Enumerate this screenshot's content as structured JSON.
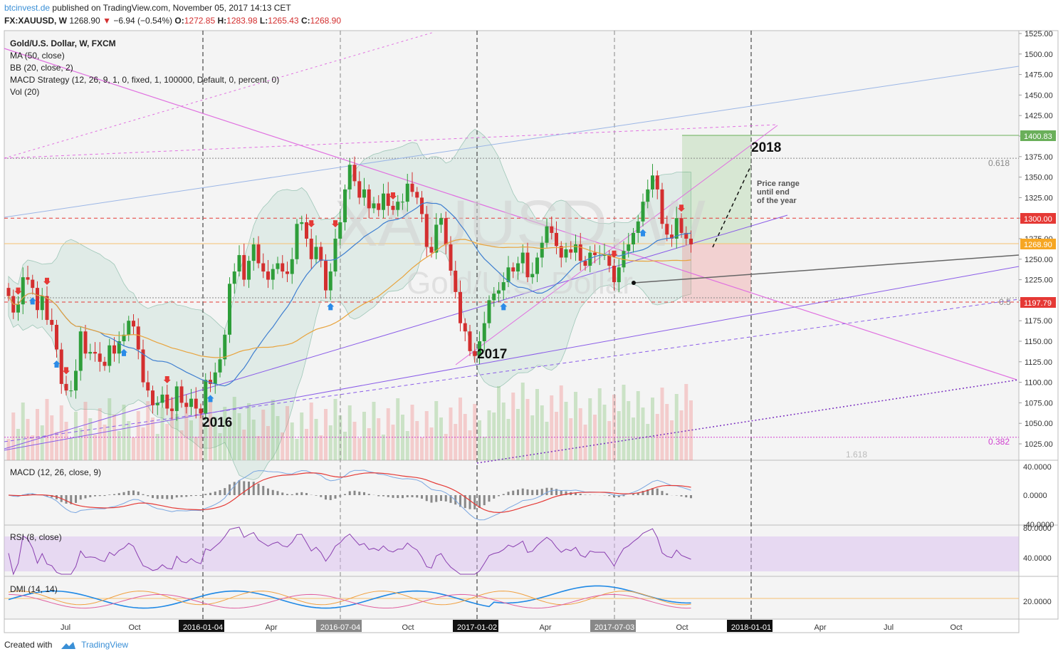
{
  "header": {
    "site": "btcinvest.de",
    "published": "published on TradingView.com, November 05, 2017 14:13 CET",
    "symbol": "FX:XAUUSD, W",
    "last": "1268.90",
    "change": "−6.94 (−0.54%)",
    "open_label": "O:",
    "open": "1272.85",
    "high_label": "H:",
    "high": "1283.98",
    "low_label": "L:",
    "low": "1265.43",
    "close_label": "C:",
    "close": "1268.90"
  },
  "legend": {
    "title": "Gold/U.S. Dollar, W, FXCM",
    "ma": "MA (50, close)",
    "bb": "BB (20, close, 2)",
    "strategy": "MACD Strategy (12, 26, 9, 1, 0, fixed, 1, 100000, Default, 0, percent, 0)",
    "vol": "Vol (20)"
  },
  "watermark": {
    "big": "XAUUSD, W",
    "small": "Gold/U.S. Dollar"
  },
  "annotations": {
    "y2016": "2016",
    "y2017": "2017",
    "y2018": "2018",
    "range_note": [
      "Price range",
      "until end",
      "of the year"
    ],
    "fib_0618": "0.618",
    "fib_05": "0.5",
    "fib_0382": "0.382",
    "fib_1618": "1.618"
  },
  "panes": {
    "macd": {
      "title": "MACD (12, 26, close, 9)",
      "ticks": [
        "40.0000",
        "0.0000",
        "-40.0000"
      ]
    },
    "rsi": {
      "title": "RSI (8, close)",
      "ticks": [
        "80.0000",
        "40.0000"
      ]
    },
    "dmi": {
      "title": "DMI (14, 14)",
      "ticks": [
        "20.0000"
      ]
    }
  },
  "price_labels": {
    "top": "1400.83",
    "mid": "1300.00",
    "last": "1268.90",
    "low": "1197.79"
  },
  "x_axis": [
    "Jul",
    "Oct",
    "2016-01-04",
    "Apr",
    "2016-07-04",
    "Oct",
    "2017-01-02",
    "Apr",
    "2017-07-03",
    "Oct",
    "2018-01-01",
    "Apr",
    "Jul",
    "Oct"
  ],
  "footer": {
    "created": "Created with",
    "brand": "TradingView"
  },
  "colors": {
    "up": "#2e9e3a",
    "down": "#d32f2f",
    "bb_fill": "#cfe3dc",
    "ma": "#e8a33c",
    "bb_mid": "#3f7fd0",
    "magenta": "#e070e0",
    "violet": "#8a5ce8",
    "long_green": "#6aaf5a"
  },
  "chart_data": {
    "type": "candlestick",
    "title": "Gold/U.S. Dollar, W, FXCM",
    "ylim": [
      1000,
      1530
    ],
    "y_ticks": [
      1025,
      1050,
      1075,
      1100,
      1125,
      1150,
      1175,
      1200,
      1225,
      1250,
      1275,
      1300,
      1325,
      1350,
      1375,
      1400,
      1425,
      1450,
      1475,
      1500,
      1525
    ],
    "close_prices": [
      1205,
      1185,
      1195,
      1228,
      1225,
      1215,
      1188,
      1205,
      1176,
      1170,
      1140,
      1098,
      1090,
      1090,
      1114,
      1162,
      1135,
      1137,
      1135,
      1125,
      1120,
      1145,
      1135,
      1150,
      1158,
      1175,
      1168,
      1140,
      1100,
      1090,
      1072,
      1075,
      1085,
      1068,
      1065,
      1095,
      1075,
      1070,
      1080,
      1068,
      1062,
      1103,
      1098,
      1112,
      1128,
      1158,
      1220,
      1235,
      1255,
      1225,
      1248,
      1268,
      1245,
      1235,
      1225,
      1238,
      1245,
      1235,
      1232,
      1250,
      1293,
      1295,
      1275,
      1250,
      1265,
      1248,
      1212,
      1235,
      1275,
      1295,
      1335,
      1365,
      1345,
      1325,
      1335,
      1312,
      1318,
      1310,
      1330,
      1315,
      1310,
      1320,
      1320,
      1342,
      1332,
      1325,
      1305,
      1265,
      1258,
      1292,
      1300,
      1268,
      1236,
      1210,
      1172,
      1162,
      1138,
      1132,
      1150,
      1172,
      1200,
      1208,
      1212,
      1222,
      1240,
      1235,
      1245,
      1258,
      1228,
      1232,
      1252,
      1270,
      1290,
      1282,
      1266,
      1252,
      1262,
      1258,
      1268,
      1248,
      1242,
      1258,
      1255,
      1255,
      1255,
      1242,
      1222,
      1240,
      1260,
      1268,
      1282,
      1296,
      1320,
      1335,
      1352,
      1335,
      1293,
      1280,
      1275,
      1300,
      1282,
      1275,
      1268
    ],
    "levels": {
      "fib_0618": 1373,
      "fib_05": 1203,
      "fib_0382": 1033,
      "resistance": 1300,
      "support": 1197.79,
      "target": 1400.83
    },
    "last": 1268.9
  }
}
